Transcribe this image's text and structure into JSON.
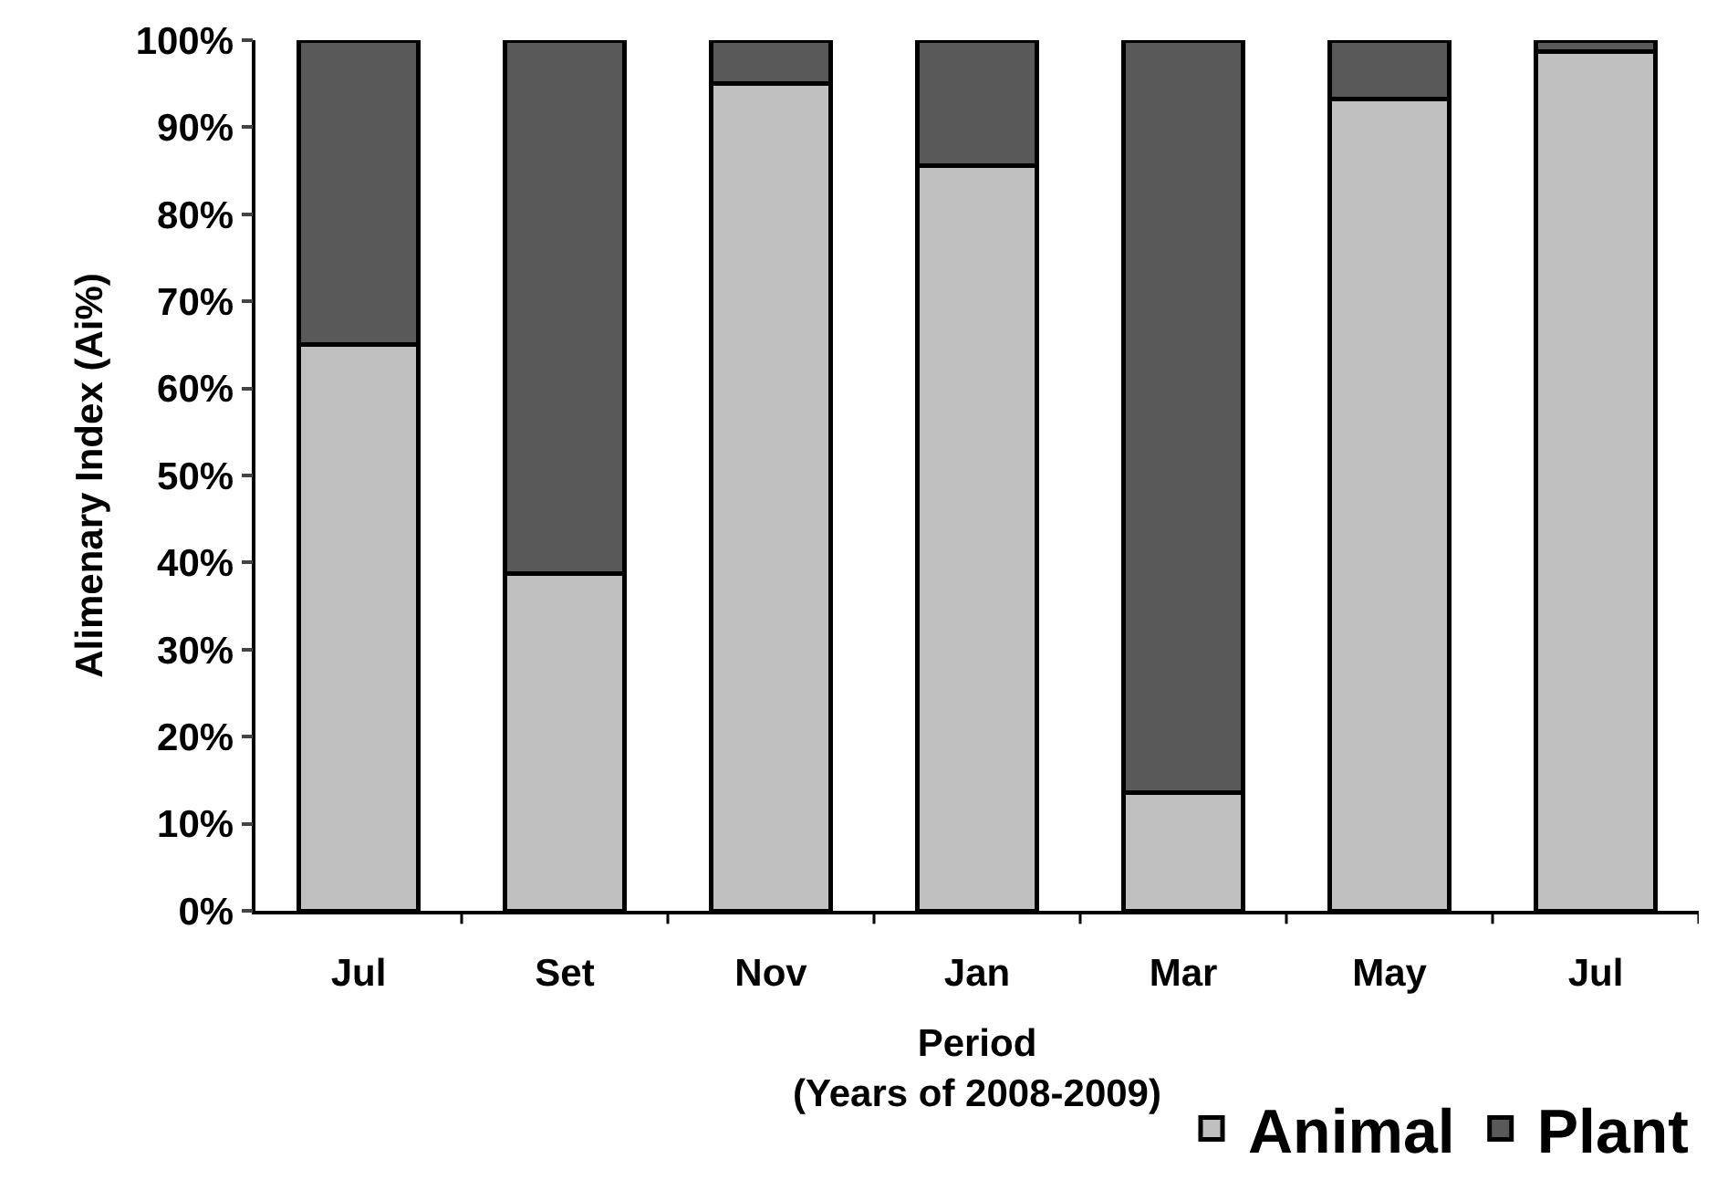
{
  "chart_data": {
    "type": "bar",
    "stacked": true,
    "xlabel": "Period\n(Years of 2008-2009)",
    "ylabel": "Alimenary Index (Ai%)",
    "categories": [
      "Jul",
      "Set",
      "Nov",
      "Jan",
      "Mar",
      "May",
      "Jul"
    ],
    "series": [
      {
        "name": "Animal",
        "color": "#c0c0c0",
        "values": [
          65,
          38.7,
          95,
          85.6,
          13.6,
          93.2,
          98.7
        ]
      },
      {
        "name": "Plant",
        "color": "#595959",
        "values": [
          35,
          61.3,
          5,
          14.4,
          86.4,
          6.8,
          1.3
        ]
      }
    ],
    "ylim": [
      0,
      100
    ],
    "yticks": [
      {
        "value": 0,
        "label": "0%"
      },
      {
        "value": 10,
        "label": "10%"
      },
      {
        "value": 20,
        "label": "20%"
      },
      {
        "value": 30,
        "label": "30%"
      },
      {
        "value": 40,
        "label": "40%"
      },
      {
        "value": 50,
        "label": "50%"
      },
      {
        "value": 60,
        "label": "60%"
      },
      {
        "value": 70,
        "label": "70%"
      },
      {
        "value": 80,
        "label": "80%"
      },
      {
        "value": 90,
        "label": "90%"
      },
      {
        "value": 100,
        "label": "100%"
      }
    ],
    "grid": false,
    "legend": "bottom right"
  }
}
